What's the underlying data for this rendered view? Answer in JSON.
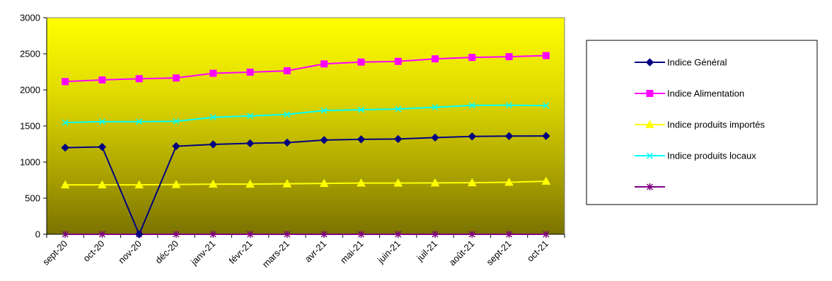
{
  "chart_data": {
    "type": "line",
    "categories": [
      "sept-20",
      "oct-20",
      "nov-20",
      "déc-20",
      "janv-21",
      "févr-21",
      "mars-21",
      "avr-21",
      "mai-21",
      "juin-21",
      "juil-21",
      "août-21",
      "sept-21",
      "oct-21"
    ],
    "ylim": [
      0,
      3000
    ],
    "yticks": [
      0,
      500,
      1000,
      1500,
      2000,
      2500,
      3000
    ],
    "legend_position": "right",
    "series": [
      {
        "name": "Indice Général",
        "color": "#000080",
        "marker": "diamond",
        "values": [
          1200,
          1210,
          0,
          1220,
          1245,
          1260,
          1270,
          1305,
          1315,
          1320,
          1340,
          1355,
          1360,
          1362
        ]
      },
      {
        "name": "Indice Alimentation",
        "color": "#FF00FF",
        "marker": "square",
        "values": [
          2115,
          2138,
          2155,
          2165,
          2230,
          2245,
          2265,
          2360,
          2385,
          2395,
          2430,
          2450,
          2460,
          2475
        ]
      },
      {
        "name": "Indice produits importés",
        "color": "#FFFF00",
        "marker": "triangle",
        "values": [
          685,
          685,
          685,
          690,
          695,
          695,
          700,
          705,
          710,
          710,
          712,
          715,
          720,
          735
        ]
      },
      {
        "name": "Indice produits locaux",
        "color": "#00FFFF",
        "marker": "x",
        "values": [
          1548,
          1560,
          1560,
          1565,
          1620,
          1640,
          1660,
          1715,
          1725,
          1735,
          1760,
          1785,
          1788,
          1782
        ]
      },
      {
        "name": "",
        "color": "#800080",
        "marker": "star",
        "values": [
          0,
          0,
          0,
          0,
          0,
          0,
          0,
          0,
          0,
          0,
          0,
          0,
          0,
          0
        ]
      }
    ]
  }
}
